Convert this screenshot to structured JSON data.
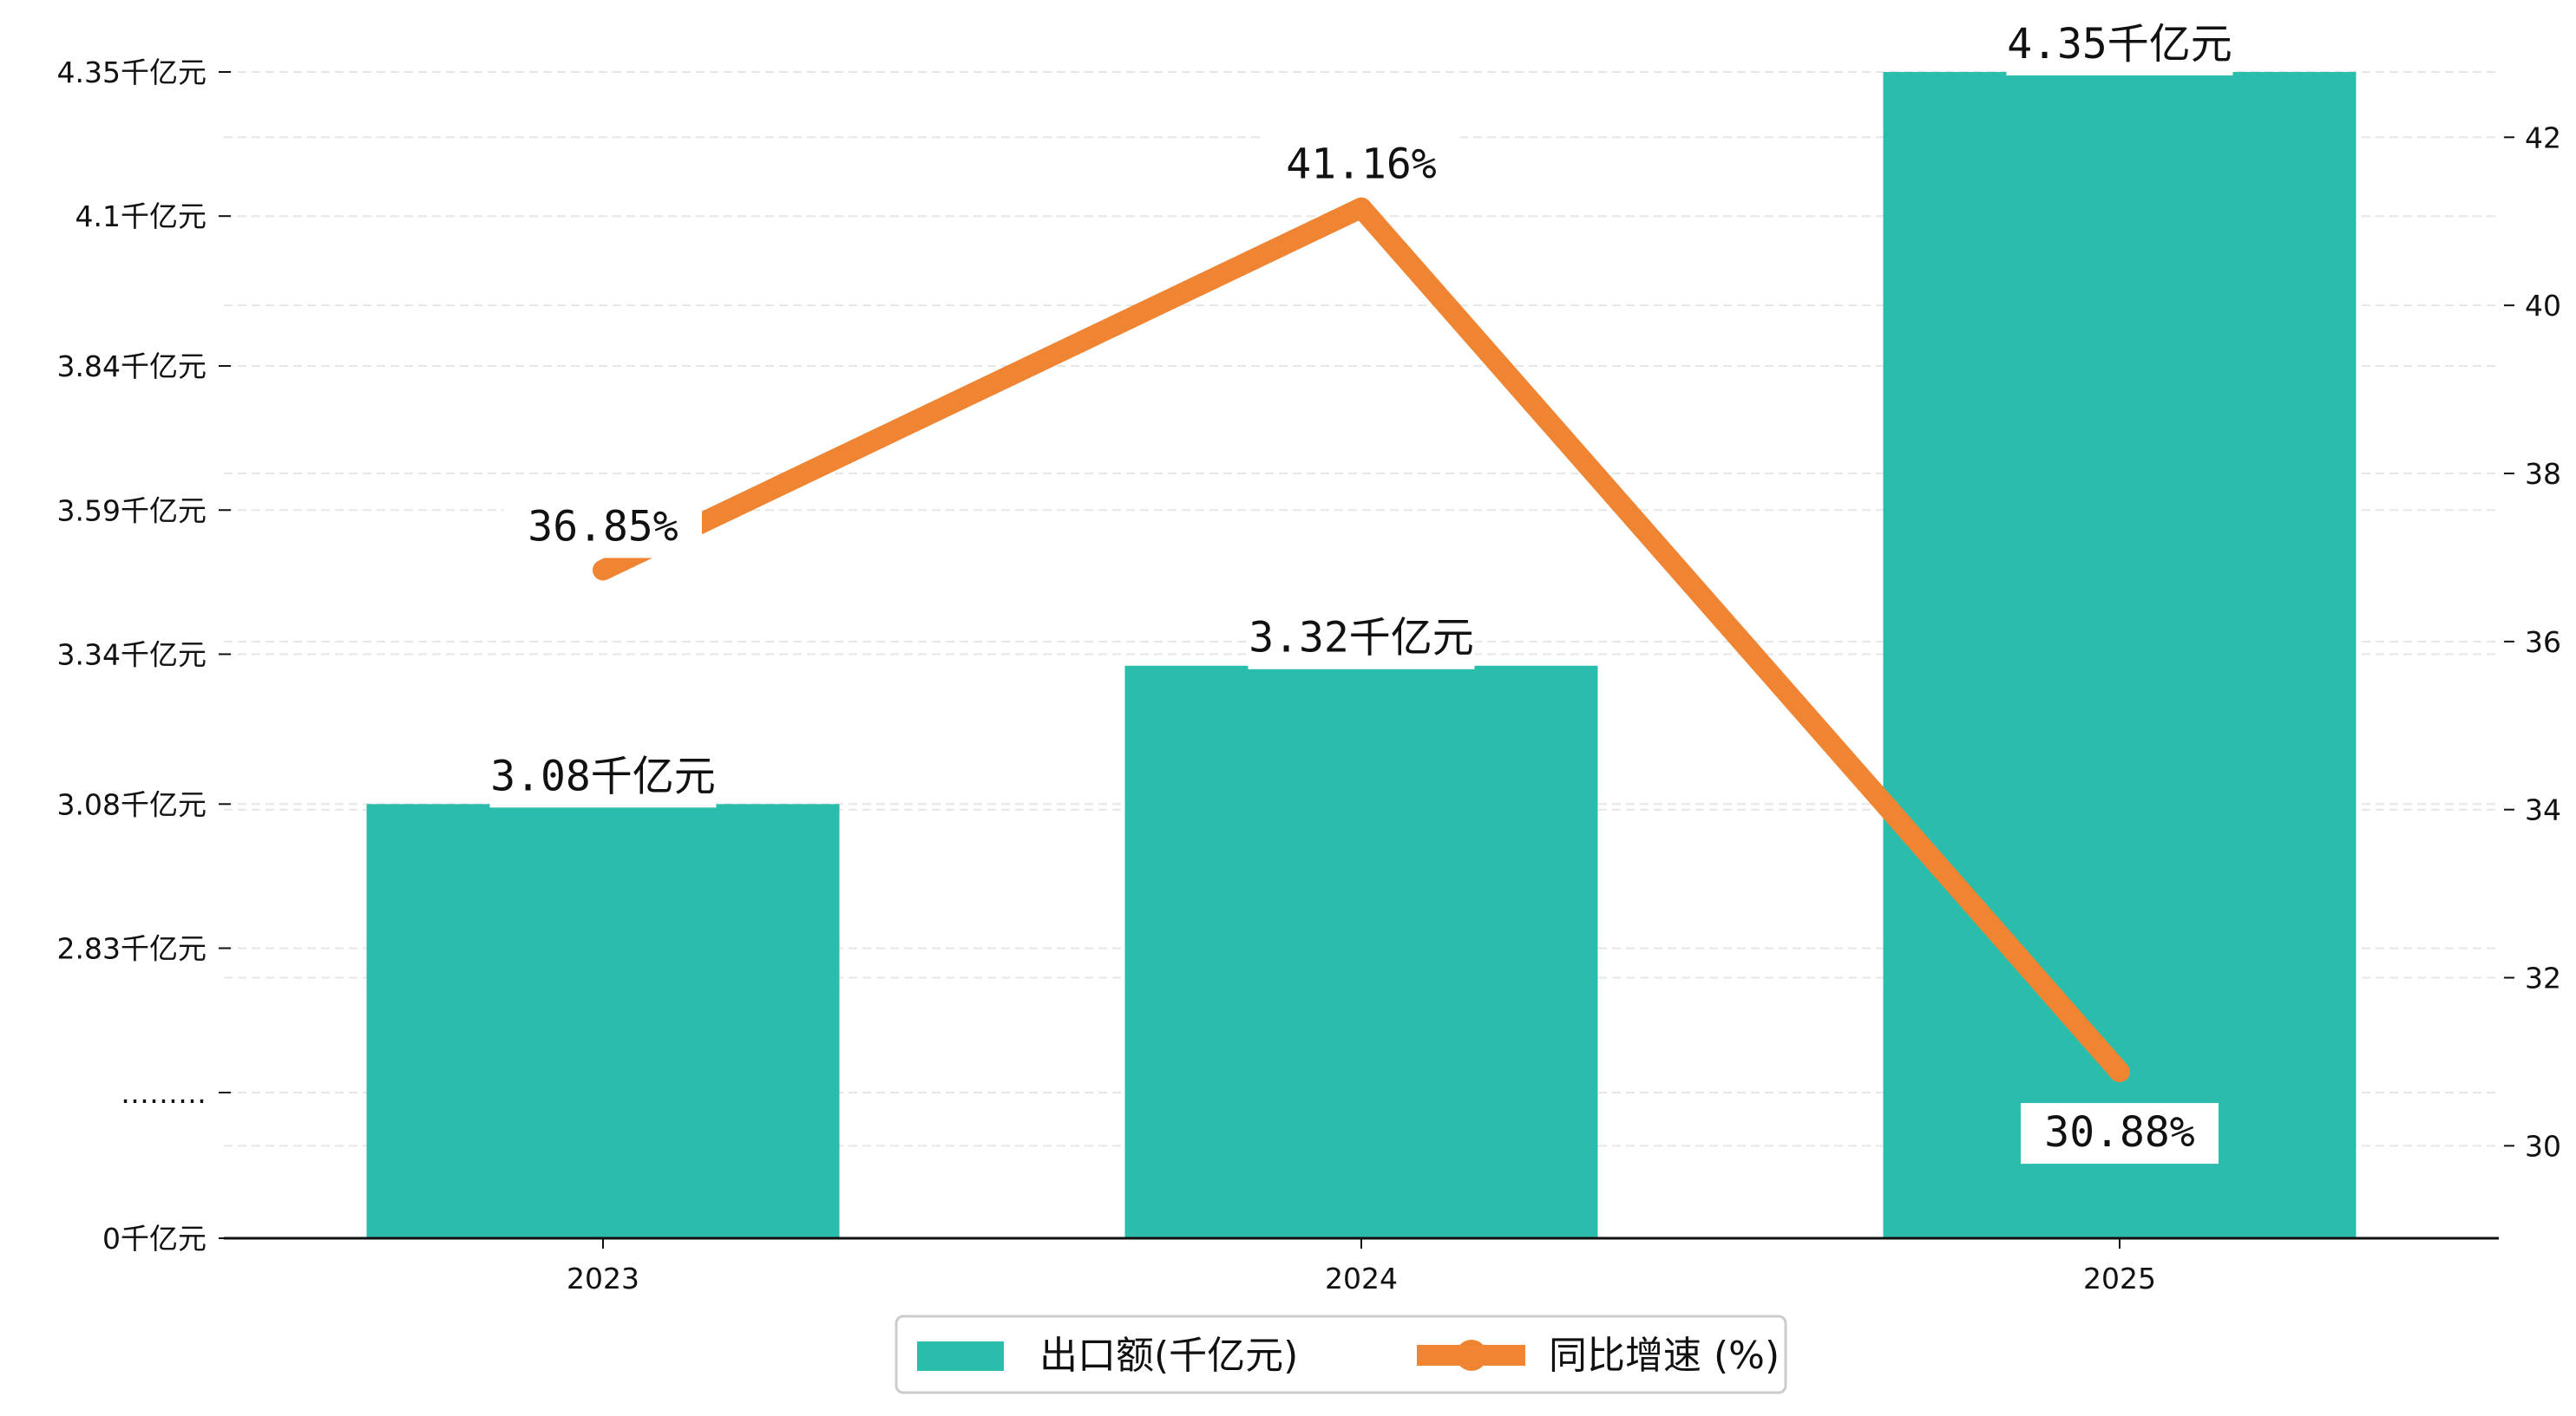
{
  "chart_data": {
    "type": "bar+line",
    "categories": [
      "2023",
      "2024",
      "2025"
    ],
    "series": [
      {
        "name": "出口额(千亿元)",
        "type": "bar",
        "axis": "left",
        "values": [
          3.08,
          3.32,
          4.35
        ],
        "labels": [
          "3.08千亿元",
          "3.32千亿元",
          "4.35千亿元"
        ],
        "color": "#2bbdab"
      },
      {
        "name": "同比增速 (%)",
        "type": "line",
        "axis": "right",
        "values": [
          36.85,
          41.16,
          30.88
        ],
        "labels": [
          "36.85%",
          "41.16%",
          "30.88%"
        ],
        "color": "#ef8533"
      }
    ],
    "left_axis": {
      "broken": true,
      "ticks": [
        {
          "value": 0,
          "label": "0千亿元"
        },
        {
          "value": null,
          "label": "………"
        },
        {
          "value": 2.83,
          "label": "2.83千亿元"
        },
        {
          "value": 3.08,
          "label": "3.08千亿元"
        },
        {
          "value": 3.34,
          "label": "3.34千亿元"
        },
        {
          "value": 3.59,
          "label": "3.59千亿元"
        },
        {
          "value": 3.84,
          "label": "3.84千亿元"
        },
        {
          "value": 4.1,
          "label": "4.1千亿元"
        },
        {
          "value": 4.35,
          "label": "4.35千亿元"
        }
      ]
    },
    "right_axis": {
      "ylim": [
        28.9,
        43.2
      ],
      "ticks": [
        "30",
        "32",
        "34",
        "36",
        "38",
        "40",
        "42"
      ]
    },
    "grid": true,
    "legend_position": "bottom-center"
  }
}
